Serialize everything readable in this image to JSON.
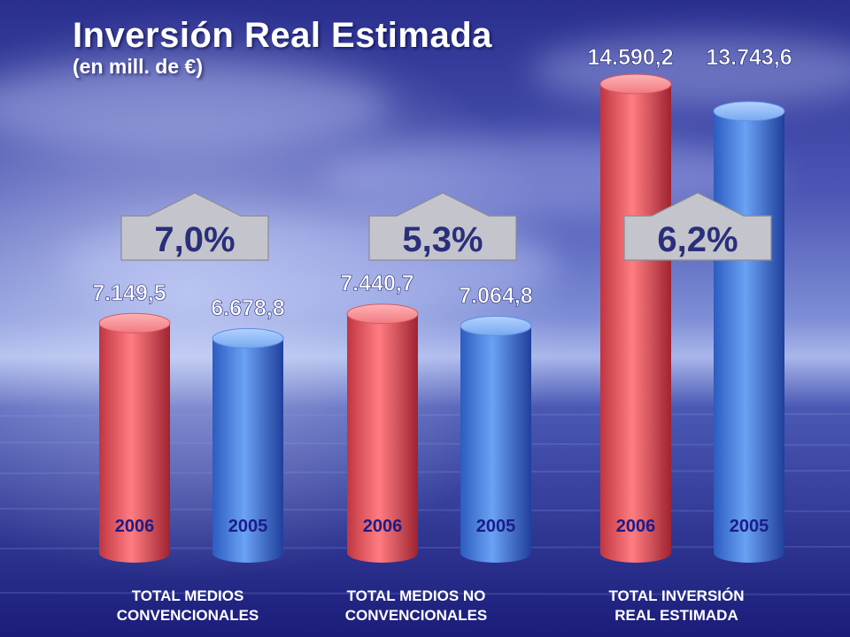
{
  "title": "Inversión Real Estimada",
  "subtitle": "(en mill. de €)",
  "chart_data": {
    "type": "bar",
    "style": "3d-cylinder",
    "unit": "mill. de €",
    "colors": {
      "2006": "#e8565e",
      "2005": "#4a86e8",
      "growth_box": "#c4c4cc",
      "year_label": "#1c1c8a"
    },
    "groups": [
      {
        "category": [
          "TOTAL MEDIOS",
          "CONVENCIONALES"
        ],
        "bars": [
          {
            "year": "2006",
            "value": 7149.5,
            "label": "7.149,5"
          },
          {
            "year": "2005",
            "value": 6678.8,
            "label": "6.678,8"
          }
        ],
        "growth": "7,0%"
      },
      {
        "category": [
          "TOTAL MEDIOS NO",
          "CONVENCIONALES"
        ],
        "bars": [
          {
            "year": "2006",
            "value": 7440.7,
            "label": "7.440,7"
          },
          {
            "year": "2005",
            "value": 7064.8,
            "label": "7.064,8"
          }
        ],
        "growth": "5,3%"
      },
      {
        "category": [
          "TOTAL INVERSIÓN",
          "REAL ESTIMADA"
        ],
        "bars": [
          {
            "year": "2006",
            "value": 14590.2,
            "label": "14.590,2"
          },
          {
            "year": "2005",
            "value": 13743.6,
            "label": "13.743,6"
          }
        ],
        "growth": "6,2%"
      }
    ]
  }
}
